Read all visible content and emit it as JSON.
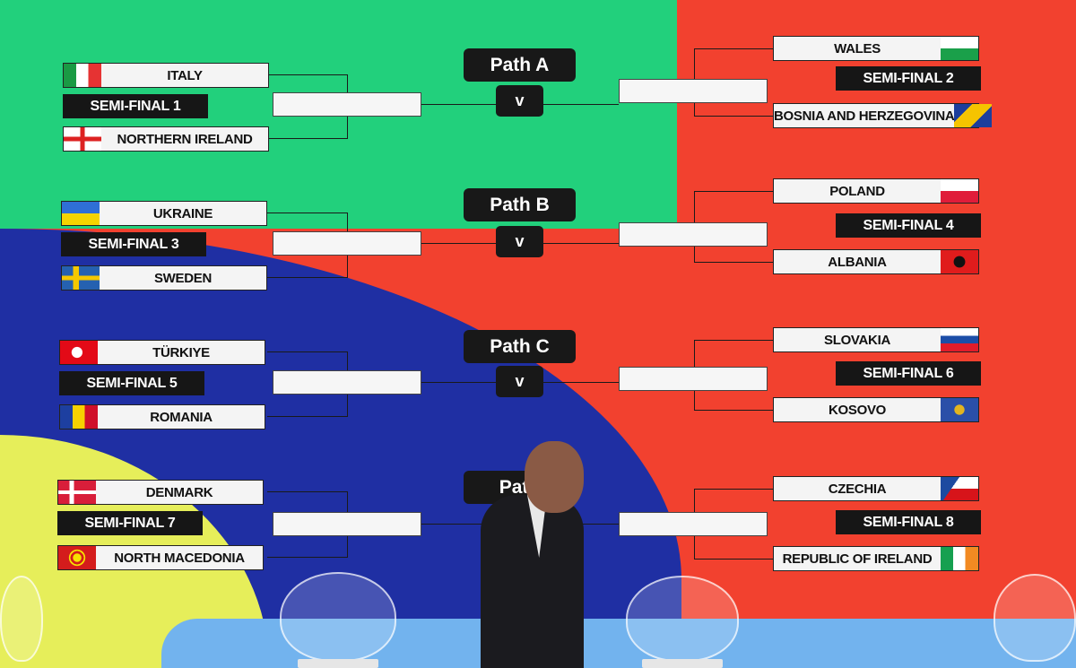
{
  "colors": {
    "green": "#22d07c",
    "blue": "#1f2fa3",
    "red": "#f2412f",
    "yellow": "#e6ee5a",
    "light_blue": "#72b3ee"
  },
  "paths": [
    {
      "label": "Path A",
      "vs": "v",
      "left": {
        "top": {
          "name": "ITALY",
          "flag": "italy"
        },
        "semi": "SEMI-FINAL 1",
        "bottom": {
          "name": "NORTHERN IRELAND",
          "flag": "northern-ireland"
        }
      },
      "right": {
        "top": {
          "name": "WALES",
          "flag": "wales"
        },
        "semi": "SEMI-FINAL 2",
        "bottom": {
          "name": "BOSNIA AND HERZEGOVINA",
          "flag": "bosnia"
        }
      }
    },
    {
      "label": "Path B",
      "vs": "v",
      "left": {
        "top": {
          "name": "UKRAINE",
          "flag": "ukraine"
        },
        "semi": "SEMI-FINAL 3",
        "bottom": {
          "name": "SWEDEN",
          "flag": "sweden"
        }
      },
      "right": {
        "top": {
          "name": "POLAND",
          "flag": "poland"
        },
        "semi": "SEMI-FINAL 4",
        "bottom": {
          "name": "ALBANIA",
          "flag": "albania"
        }
      }
    },
    {
      "label": "Path C",
      "vs": "v",
      "left": {
        "top": {
          "name": "TÜRKIYE",
          "flag": "turkiye"
        },
        "semi": "SEMI-FINAL 5",
        "bottom": {
          "name": "ROMANIA",
          "flag": "romania"
        }
      },
      "right": {
        "top": {
          "name": "SLOVAKIA",
          "flag": "slovakia"
        },
        "semi": "SEMI-FINAL 6",
        "bottom": {
          "name": "KOSOVO",
          "flag": "kosovo"
        }
      }
    },
    {
      "label": "Path",
      "vs": "",
      "left": {
        "top": {
          "name": "DENMARK",
          "flag": "denmark"
        },
        "semi": "SEMI-FINAL 7",
        "bottom": {
          "name": "NORTH MACEDONIA",
          "flag": "north-macedonia"
        }
      },
      "right": {
        "top": {
          "name": "CZECHIA",
          "flag": "czechia"
        },
        "semi": "SEMI-FINAL 8",
        "bottom": {
          "name": "REPUBLIC OF IRELAND",
          "flag": "ireland"
        }
      }
    }
  ]
}
